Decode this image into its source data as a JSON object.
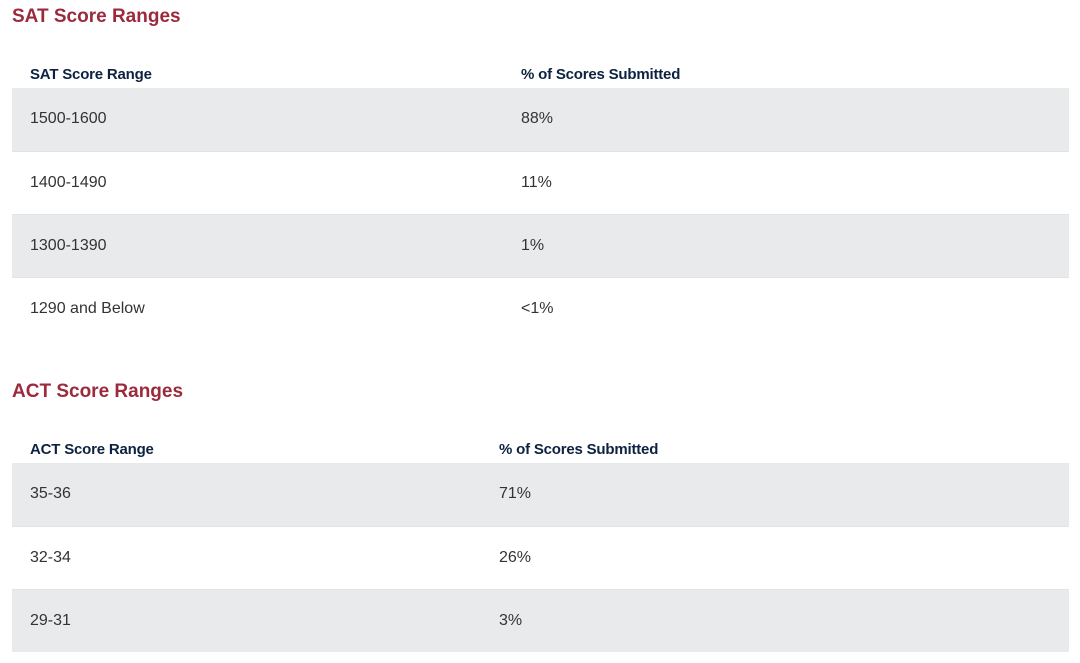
{
  "sat": {
    "title": "SAT Score Ranges",
    "headers": [
      "SAT Score Range",
      "% of Scores Submitted"
    ],
    "rows": [
      [
        "1500-1600",
        "88%"
      ],
      [
        "1400-1490",
        "11%"
      ],
      [
        "1300-1390",
        "1%"
      ],
      [
        "1290 and Below",
        "<1%"
      ]
    ]
  },
  "act": {
    "title": "ACT Score Ranges",
    "headers": [
      "ACT Score Range",
      "% of Scores Submitted"
    ],
    "rows": [
      [
        "35-36",
        "71%"
      ],
      [
        "32-34",
        "26%"
      ],
      [
        "29-31",
        "3%"
      ]
    ]
  },
  "colors": {
    "heading": "#9c2a3c",
    "header_text": "#0d2240",
    "row_shade": "#e9eaec"
  }
}
